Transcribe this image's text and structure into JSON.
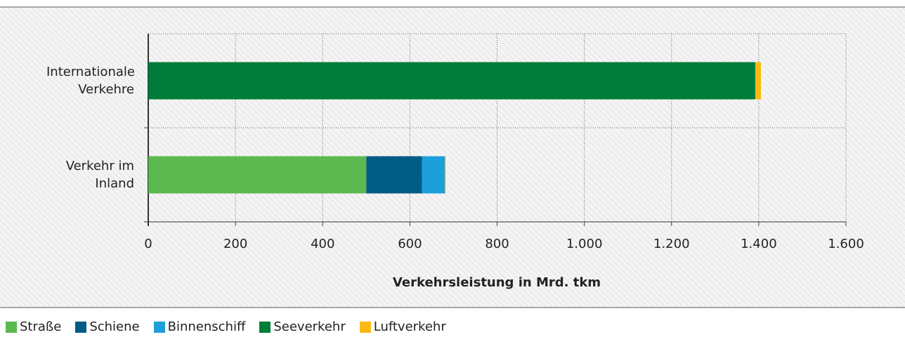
{
  "chart_data": {
    "type": "stacked_barh",
    "categories": [
      "Internationale Verkehre",
      "Verkehr im Inland"
    ],
    "series": [
      {
        "name": "Straße",
        "color": "#5cb94f",
        "values": [
          0,
          500
        ]
      },
      {
        "name": "Schiene",
        "color": "#005b85",
        "values": [
          0,
          128
        ]
      },
      {
        "name": "Binnenschiff",
        "color": "#1ba0db",
        "values": [
          0,
          52
        ]
      },
      {
        "name": "Seeverkehr",
        "color": "#007c3a",
        "values": [
          1392,
          0
        ]
      },
      {
        "name": "Luftverkehr",
        "color": "#fbb913",
        "values": [
          13,
          2
        ]
      }
    ],
    "x_label": "Verkehrsleistung in Mrd. tkm",
    "xlim": [
      0,
      1600
    ],
    "xticks": [
      0,
      200,
      400,
      600,
      800,
      {
        "value": 1000,
        "label": "1.000"
      },
      {
        "value": 1200,
        "label": "1.200"
      },
      {
        "value": 1400,
        "label": "1.400"
      },
      {
        "value": 1600,
        "label": "1.600"
      }
    ],
    "grid": true,
    "legend": "bottom-left"
  }
}
